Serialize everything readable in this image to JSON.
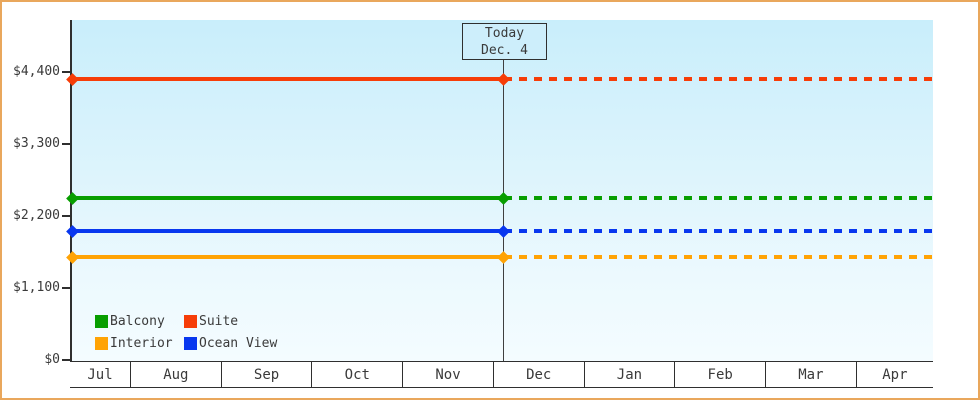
{
  "frame": {
    "border_color": "#e9a75c",
    "background": "#ffffff",
    "text_color": "#3a3a3a"
  },
  "chart_data": {
    "type": "line",
    "title": "",
    "x_axis": {
      "months": [
        "Jul",
        "Aug",
        "Sep",
        "Oct",
        "Nov",
        "Dec",
        "Jan",
        "Feb",
        "Mar",
        "Apr"
      ]
    },
    "y_axis": {
      "tick_labels": [
        "$4,400",
        "$3,300",
        "$2,200",
        "$1,100",
        "$0"
      ],
      "tick_values": [
        4400,
        3300,
        2200,
        1100,
        0
      ],
      "ylim": [
        0,
        5200
      ],
      "unit": "USD"
    },
    "today_marker": {
      "line1": "Today",
      "line2": "Dec. 4",
      "month": "Dec",
      "day": 4
    },
    "series": [
      {
        "name": "Suite",
        "color": "#f63d08",
        "value": 4290,
        "style": "solid-before-today-dashed-after"
      },
      {
        "name": "Balcony",
        "color": "#089e00",
        "value": 2470,
        "style": "solid-before-today-dashed-after"
      },
      {
        "name": "Ocean View",
        "color": "#0837ef",
        "value": 1970,
        "style": "solid-before-today-dashed-after"
      },
      {
        "name": "Interior",
        "color": "#ffa305",
        "value": 1570,
        "style": "solid-before-today-dashed-after"
      }
    ],
    "legend": {
      "rows": [
        [
          "Balcony",
          "Suite"
        ],
        [
          "Interior",
          "Ocean View"
        ]
      ],
      "colors": {
        "Balcony": "#089e00",
        "Suite": "#f63d08",
        "Interior": "#ffa305",
        "Ocean View": "#0837ef"
      },
      "position": "bottom-left-inside"
    },
    "grid": false
  }
}
